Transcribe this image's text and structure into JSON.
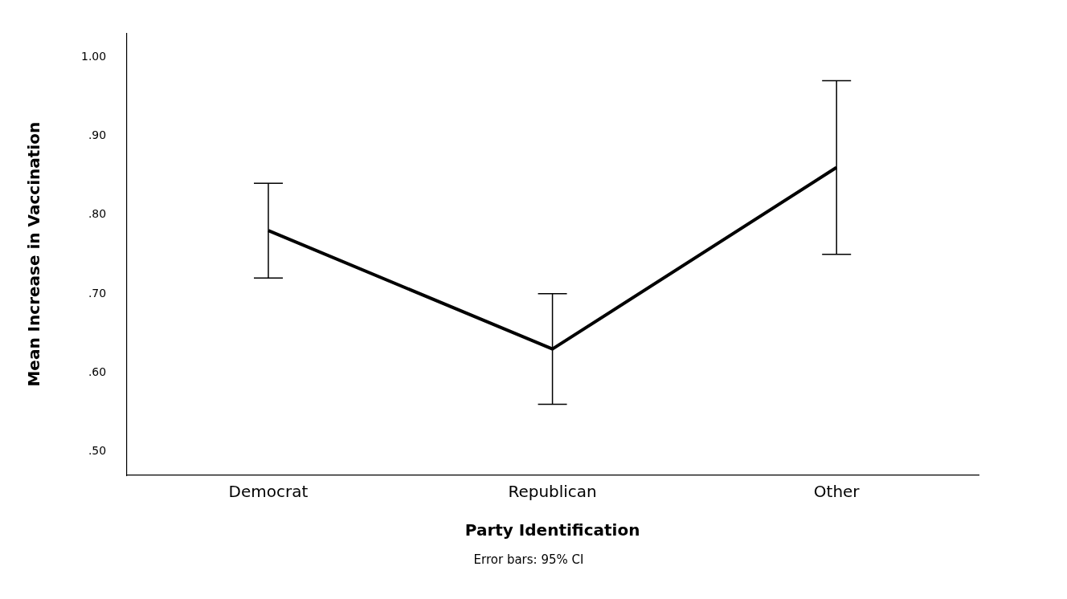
{
  "chart_data": {
    "type": "line",
    "xlabel": "Party Identification",
    "ylabel": "Mean Increase in Vaccination",
    "categories": [
      "Democrat",
      "Republican",
      "Other"
    ],
    "values": [
      0.78,
      0.63,
      0.86
    ],
    "errors": [
      [
        0.72,
        0.84
      ],
      [
        0.56,
        0.7
      ],
      [
        0.75,
        0.97
      ]
    ],
    "color": "#000000",
    "marker": "none",
    "line_style": "solid",
    "grid": false,
    "legend": false,
    "ylim": [
      0.47,
      1.03
    ],
    "yticks": [
      {
        "value": 0.5,
        "label": ".50"
      },
      {
        "value": 0.6,
        "label": ".60"
      },
      {
        "value": 0.7,
        "label": ".70"
      },
      {
        "value": 0.8,
        "label": ".80"
      },
      {
        "value": 0.9,
        "label": ".90"
      },
      {
        "value": 1.0,
        "label": "1.00"
      }
    ],
    "annotations": [
      "Error bars: 95% CI"
    ]
  }
}
